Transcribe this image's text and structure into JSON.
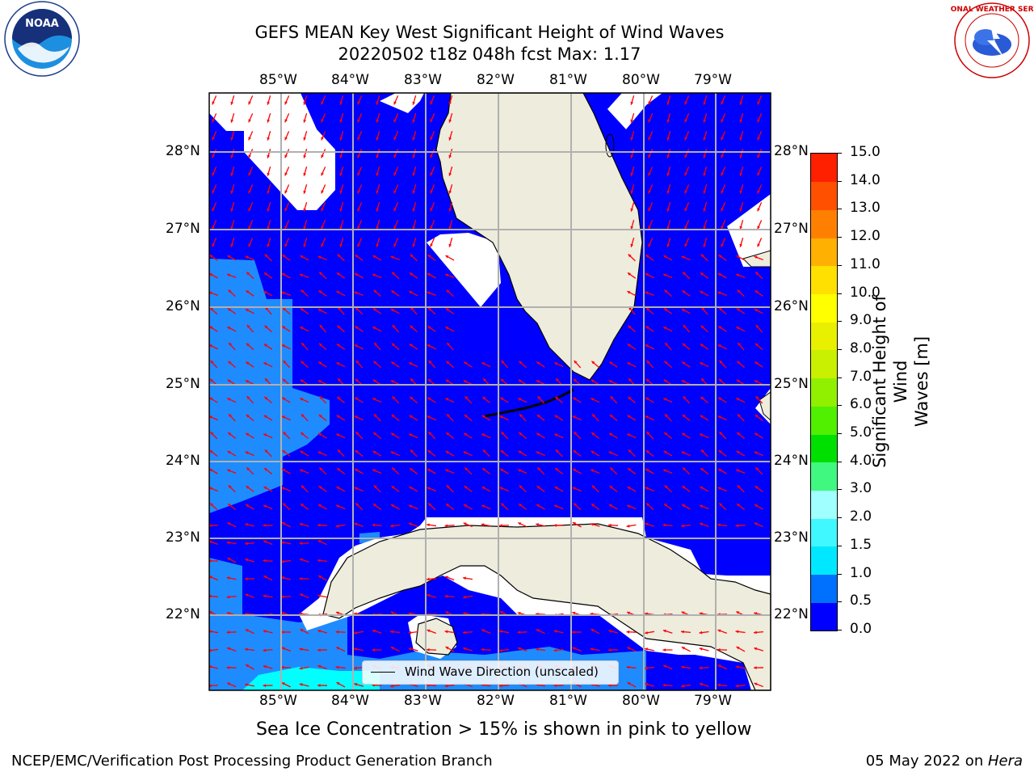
{
  "title_line1": "GEFS MEAN Key West Significant Height of Wind Waves",
  "title_line2": "20220502 t18z 048h fcst   Max: 1.17",
  "lon_labels": [
    "85°W",
    "84°W",
    "83°W",
    "82°W",
    "81°W",
    "80°W",
    "79°W"
  ],
  "lat_labels": [
    "28°N",
    "27°N",
    "26°N",
    "25°N",
    "24°N",
    "23°N",
    "22°N"
  ],
  "legend_label": "Wind Wave Direction (unscaled)",
  "colorbar": {
    "label_line1": "Significant Height of Wind",
    "label_line2": "Waves [m]",
    "ticks": [
      "15.0",
      "14.0",
      "13.0",
      "12.0",
      "11.0",
      "10.0",
      "9.0",
      "8.0",
      "7.0",
      "6.0",
      "5.0",
      "4.0",
      "3.0",
      "2.0",
      "1.5",
      "1.0",
      "0.5",
      "0.0"
    ],
    "colors_bottom_to_top": [
      "#0000ff",
      "#0070ff",
      "#00e8ff",
      "#40f8ff",
      "#a0ffff",
      "#40f880",
      "#00e000",
      "#50f000",
      "#90f000",
      "#c8f000",
      "#e8f000",
      "#ffff00",
      "#ffe000",
      "#ffb000",
      "#ff8000",
      "#ff5000",
      "#ff2000"
    ],
    "accent_colors": {
      "water_low": "#0000ff",
      "water_mid": "#1e8cff",
      "water_high": "#00ffff",
      "land": "#eeecdc",
      "arrow": "#ff0000"
    }
  },
  "subtitle": "Sea Ice Concentration > 15% is shown in pink to yellow",
  "footer_left": "NCEP/EMC/Verification Post Processing Product Generation Branch",
  "footer_right_date": "05 May 2022 on ",
  "footer_right_host": "Hera",
  "logos": {
    "left": "NOAA",
    "right": "NATIONAL WEATHER SERVICE"
  }
}
